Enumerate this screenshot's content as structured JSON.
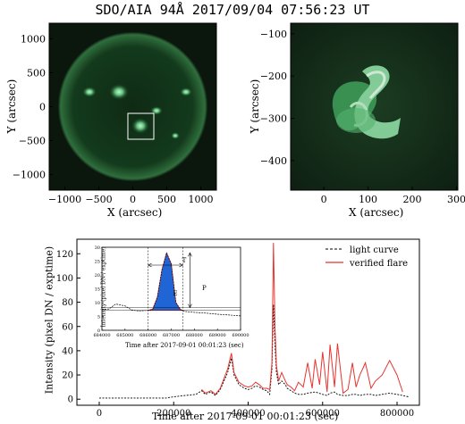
{
  "title": "SDO/AIA 94Å 2017/09/04 07:56:23 UT",
  "left_image": {
    "xlabel": "X (arcsec)",
    "ylabel": "Y (arcsec)",
    "xticks": [
      "−1000",
      "−500",
      "0",
      "500",
      "1000"
    ],
    "yticks": [
      "1000",
      "500",
      "0",
      "−500",
      "−1000"
    ]
  },
  "right_image": {
    "xlabel": "X (arcsec)",
    "ylabel": "Y (arcsec)",
    "xticks": [
      "0",
      "100",
      "200",
      "300"
    ],
    "yticks": [
      "−100",
      "−200",
      "−300",
      "−400"
    ]
  },
  "chart_data": [
    {
      "type": "line",
      "xlabel": "Time after 2017-09-01 00:01:23 (sec)",
      "ylabel": "Intensity (pixel DN / exptime)",
      "xlim": [
        -60000,
        860000
      ],
      "ylim": [
        -5,
        132
      ],
      "xticks": [
        "0",
        "200000",
        "400000",
        "600000",
        "800000"
      ],
      "yticks": [
        "0",
        "20",
        "40",
        "60",
        "80",
        "100",
        "120"
      ],
      "legend_position": "top-right",
      "series": [
        {
          "name": "light curve",
          "color": "#000000",
          "dash": true,
          "x": [
            0,
            60000,
            120000,
            180000,
            200000,
            230000,
            260000,
            275000,
            285000,
            300000,
            312000,
            325000,
            345000,
            355000,
            362000,
            375000,
            390000,
            400000,
            410000,
            420000,
            430000,
            440000,
            450000,
            458000,
            464000,
            468000,
            472000,
            476000,
            482000,
            490000,
            500000,
            505000,
            515000,
            525000,
            535000,
            548000,
            560000,
            580000,
            600000,
            612000,
            620000,
            632000,
            640000,
            655000,
            668000,
            680000,
            690000,
            700000,
            715000,
            730000,
            742000,
            760000,
            780000,
            800000,
            815000,
            830000
          ],
          "y": [
            1,
            1,
            1,
            1,
            2,
            3,
            4,
            7,
            4,
            6,
            3,
            8,
            22,
            34,
            20,
            12,
            9,
            8,
            9,
            11,
            10,
            8,
            7,
            4,
            25,
            78,
            45,
            22,
            12,
            15,
            12,
            9,
            7,
            5,
            4,
            4,
            5,
            6,
            4,
            3,
            5,
            6,
            4,
            3,
            3,
            4,
            4,
            3,
            4,
            4,
            3,
            4,
            5,
            4,
            3,
            2
          ]
        },
        {
          "name": "verified flare",
          "color": "#e8332e",
          "dash": false,
          "x": [
            275000,
            285000,
            300000,
            312000,
            325000,
            345000,
            355000,
            362000,
            375000,
            390000,
            400000,
            410000,
            420000,
            430000,
            440000,
            450000,
            458000,
            464000,
            468000,
            472000,
            476000,
            482000,
            490000,
            500000,
            505000,
            515000,
            525000,
            535000,
            548000,
            560000,
            572000,
            580000,
            592000,
            600000,
            612000,
            620000,
            632000,
            640000,
            655000,
            668000,
            680000,
            690000,
            700000,
            715000,
            730000,
            742000,
            760000,
            780000,
            800000,
            815000
          ],
          "y": [
            8,
            5,
            7,
            4,
            9,
            25,
            38,
            22,
            14,
            11,
            10,
            11,
            14,
            12,
            9,
            9,
            8,
            30,
            129,
            60,
            28,
            15,
            22,
            15,
            12,
            10,
            7,
            14,
            10,
            30,
            9,
            33,
            12,
            39,
            6,
            45,
            10,
            46,
            5,
            8,
            30,
            10,
            20,
            30,
            9,
            15,
            20,
            32,
            20,
            6
          ]
        }
      ]
    },
    {
      "type": "area",
      "xlabel": "Time after 2017-09-01 00:01:23 (sec)",
      "ylabel": "Intensity (pixel DN / exptime)",
      "xlim": [
        684000,
        690000
      ],
      "ylim": [
        0,
        30
      ],
      "xticks": [
        "684000",
        "685000",
        "686000",
        "687000",
        "688000",
        "689000",
        "690000"
      ],
      "yticks": [
        "0",
        "5",
        "10",
        "15",
        "20",
        "25",
        "30"
      ],
      "annotations": [
        "T",
        "P",
        "E"
      ],
      "series": [
        {
          "name": "light curve",
          "color": "#000000",
          "dash": true,
          "x": [
            684000,
            684300,
            684600,
            685000,
            685300,
            685600,
            686000,
            686200,
            686400,
            686600,
            686800,
            687000,
            687200,
            687400,
            687600,
            688000,
            688500,
            689000,
            689500,
            690000
          ],
          "y": [
            7.5,
            7.7,
            9.5,
            8.8,
            7.3,
            7,
            7.2,
            7.6,
            12,
            22,
            28,
            24,
            10,
            7.5,
            6.8,
            6.5,
            6.2,
            5.8,
            5.5,
            5.2
          ]
        }
      ],
      "flare_region": {
        "x_start": 686000,
        "x_end": 687500,
        "color": "#1f65d6"
      }
    }
  ]
}
